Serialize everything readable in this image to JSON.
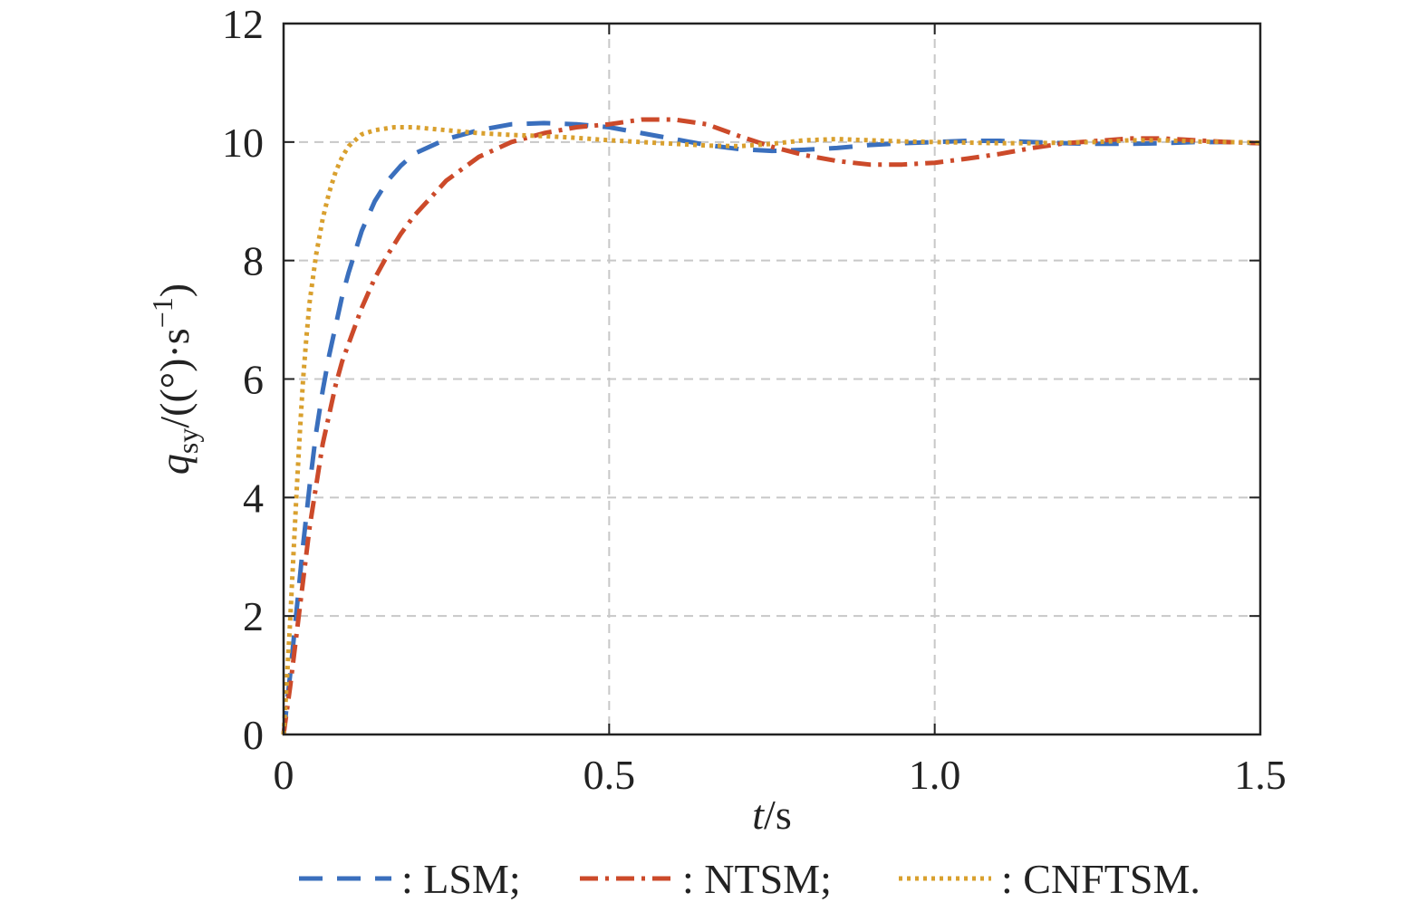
{
  "chart_data": {
    "type": "line",
    "xlabel_italic": "t",
    "xlabel_rest": "/s",
    "ylabel": {
      "symbol": "q",
      "subscript": "sy",
      "unit_open": "/((°)·s",
      "unit_sup": "−1",
      "unit_close": ")"
    },
    "xlim": [
      0,
      1.5
    ],
    "ylim": [
      0,
      12
    ],
    "x_ticks": [
      0,
      0.5,
      1.0,
      1.5
    ],
    "x_tick_labels": [
      "0",
      "0.5",
      "1.0",
      "1.5"
    ],
    "y_ticks": [
      0,
      2,
      4,
      6,
      8,
      10,
      12
    ],
    "y_tick_labels": [
      "0",
      "2",
      "4",
      "6",
      "8",
      "10",
      "12"
    ],
    "grid": true,
    "legend_position": "bottom",
    "series": [
      {
        "name": "LSM",
        "legend_label": ": LSM;",
        "color": "#3a6fbd",
        "style": "dashed",
        "points": [
          [
            0,
            0
          ],
          [
            0.01,
            1.0
          ],
          [
            0.02,
            2.1
          ],
          [
            0.03,
            3.2
          ],
          [
            0.04,
            4.2
          ],
          [
            0.05,
            5.1
          ],
          [
            0.06,
            5.8
          ],
          [
            0.07,
            6.4
          ],
          [
            0.08,
            6.9
          ],
          [
            0.09,
            7.4
          ],
          [
            0.1,
            7.8
          ],
          [
            0.12,
            8.5
          ],
          [
            0.14,
            9.0
          ],
          [
            0.16,
            9.35
          ],
          [
            0.18,
            9.6
          ],
          [
            0.2,
            9.8
          ],
          [
            0.25,
            10.05
          ],
          [
            0.3,
            10.2
          ],
          [
            0.35,
            10.3
          ],
          [
            0.4,
            10.32
          ],
          [
            0.45,
            10.3
          ],
          [
            0.5,
            10.25
          ],
          [
            0.55,
            10.15
          ],
          [
            0.6,
            10.05
          ],
          [
            0.65,
            9.95
          ],
          [
            0.7,
            9.88
          ],
          [
            0.75,
            9.85
          ],
          [
            0.8,
            9.87
          ],
          [
            0.85,
            9.9
          ],
          [
            0.9,
            9.95
          ],
          [
            0.95,
            9.98
          ],
          [
            1.0,
            10.0
          ],
          [
            1.05,
            10.02
          ],
          [
            1.1,
            10.02
          ],
          [
            1.15,
            10.0
          ],
          [
            1.2,
            9.98
          ],
          [
            1.25,
            9.97
          ],
          [
            1.3,
            9.97
          ],
          [
            1.35,
            9.98
          ],
          [
            1.4,
            10.0
          ],
          [
            1.45,
            10.0
          ],
          [
            1.5,
            9.98
          ]
        ]
      },
      {
        "name": "NTSM",
        "legend_label": ": NTSM;",
        "color": "#cc4a2a",
        "style": "dashdot",
        "points": [
          [
            0,
            0
          ],
          [
            0.01,
            0.8
          ],
          [
            0.02,
            1.7
          ],
          [
            0.03,
            2.6
          ],
          [
            0.04,
            3.5
          ],
          [
            0.05,
            4.2
          ],
          [
            0.06,
            4.9
          ],
          [
            0.07,
            5.4
          ],
          [
            0.08,
            5.9
          ],
          [
            0.09,
            6.3
          ],
          [
            0.1,
            6.6
          ],
          [
            0.12,
            7.2
          ],
          [
            0.14,
            7.7
          ],
          [
            0.16,
            8.1
          ],
          [
            0.18,
            8.45
          ],
          [
            0.2,
            8.75
          ],
          [
            0.25,
            9.35
          ],
          [
            0.3,
            9.75
          ],
          [
            0.35,
            10.0
          ],
          [
            0.4,
            10.15
          ],
          [
            0.45,
            10.25
          ],
          [
            0.5,
            10.3
          ],
          [
            0.55,
            10.38
          ],
          [
            0.6,
            10.38
          ],
          [
            0.65,
            10.3
          ],
          [
            0.7,
            10.1
          ],
          [
            0.75,
            9.92
          ],
          [
            0.8,
            9.78
          ],
          [
            0.85,
            9.68
          ],
          [
            0.9,
            9.62
          ],
          [
            0.95,
            9.62
          ],
          [
            1.0,
            9.65
          ],
          [
            1.05,
            9.72
          ],
          [
            1.1,
            9.8
          ],
          [
            1.15,
            9.9
          ],
          [
            1.2,
            9.98
          ],
          [
            1.25,
            10.02
          ],
          [
            1.3,
            10.06
          ],
          [
            1.35,
            10.06
          ],
          [
            1.4,
            10.03
          ],
          [
            1.45,
            10.0
          ],
          [
            1.5,
            9.98
          ]
        ]
      },
      {
        "name": "CNFTSM",
        "legend_label": ": CNFTSM.",
        "color": "#d9a02e",
        "style": "dotted",
        "points": [
          [
            0,
            0
          ],
          [
            0.005,
            0.9
          ],
          [
            0.01,
            1.9
          ],
          [
            0.015,
            3.0
          ],
          [
            0.02,
            4.1
          ],
          [
            0.025,
            5.1
          ],
          [
            0.03,
            6.0
          ],
          [
            0.035,
            6.7
          ],
          [
            0.04,
            7.3
          ],
          [
            0.05,
            8.1
          ],
          [
            0.06,
            8.7
          ],
          [
            0.07,
            9.15
          ],
          [
            0.08,
            9.5
          ],
          [
            0.09,
            9.75
          ],
          [
            0.1,
            9.93
          ],
          [
            0.12,
            10.13
          ],
          [
            0.14,
            10.2
          ],
          [
            0.17,
            10.25
          ],
          [
            0.2,
            10.25
          ],
          [
            0.25,
            10.2
          ],
          [
            0.3,
            10.15
          ],
          [
            0.35,
            10.12
          ],
          [
            0.4,
            10.1
          ],
          [
            0.45,
            10.07
          ],
          [
            0.5,
            10.03
          ],
          [
            0.55,
            10.0
          ],
          [
            0.6,
            9.97
          ],
          [
            0.65,
            9.94
          ],
          [
            0.7,
            9.93
          ],
          [
            0.75,
            9.97
          ],
          [
            0.8,
            10.03
          ],
          [
            0.85,
            10.05
          ],
          [
            0.9,
            10.03
          ],
          [
            0.95,
            10.01
          ],
          [
            1.0,
            10.0
          ],
          [
            1.05,
            9.99
          ],
          [
            1.1,
            9.98
          ],
          [
            1.15,
            9.98
          ],
          [
            1.2,
            9.99
          ],
          [
            1.25,
            10.0
          ],
          [
            1.3,
            10.03
          ],
          [
            1.35,
            10.03
          ],
          [
            1.4,
            10.01
          ],
          [
            1.45,
            10.0
          ],
          [
            1.5,
            9.99
          ]
        ]
      }
    ]
  }
}
